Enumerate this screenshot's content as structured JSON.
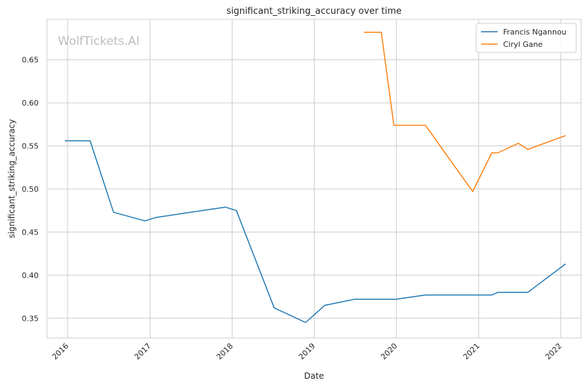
{
  "chart_data": {
    "type": "line",
    "title": "significant_striking_accuracy over time",
    "xlabel": "Date",
    "ylabel": "significant_striking_accuracy",
    "watermark": "WolfTickets.AI",
    "grid": true,
    "legend_position": "top-right",
    "x_range": [
      "2015-10-01",
      "2022-04-01"
    ],
    "ylim": [
      0.327,
      0.697
    ],
    "x_ticks": [
      "2016",
      "2017",
      "2018",
      "2019",
      "2020",
      "2021",
      "2022"
    ],
    "y_ticks": [
      "0.35",
      "0.40",
      "0.45",
      "0.50",
      "0.55",
      "0.60",
      "0.65"
    ],
    "series": [
      {
        "name": "Francis Ngannou",
        "color": "#1f77b4",
        "points": [
          [
            "2015-12-20",
            0.556
          ],
          [
            "2016-04-10",
            0.556
          ],
          [
            "2016-07-23",
            0.473
          ],
          [
            "2016-12-09",
            0.463
          ],
          [
            "2017-01-28",
            0.467
          ],
          [
            "2017-12-02",
            0.479
          ],
          [
            "2018-01-20",
            0.475
          ],
          [
            "2018-07-07",
            0.362
          ],
          [
            "2018-11-24",
            0.345
          ],
          [
            "2019-02-17",
            0.365
          ],
          [
            "2019-06-29",
            0.372
          ],
          [
            "2019-12-31",
            0.372
          ],
          [
            "2020-05-09",
            0.377
          ],
          [
            "2021-03-01",
            0.377
          ],
          [
            "2021-03-27",
            0.38
          ],
          [
            "2021-08-07",
            0.38
          ],
          [
            "2022-01-22",
            0.413
          ]
        ]
      },
      {
        "name": "Ciryl Gane",
        "color": "#ff7f0e",
        "points": [
          [
            "2019-08-10",
            0.682
          ],
          [
            "2019-10-26",
            0.682
          ],
          [
            "2019-12-21",
            0.574
          ],
          [
            "2020-05-09",
            0.574
          ],
          [
            "2020-12-05",
            0.497
          ],
          [
            "2021-02-28",
            0.542
          ],
          [
            "2021-03-27",
            0.542
          ],
          [
            "2021-06-26",
            0.553
          ],
          [
            "2021-08-07",
            0.546
          ],
          [
            "2022-01-22",
            0.562
          ]
        ]
      }
    ]
  }
}
